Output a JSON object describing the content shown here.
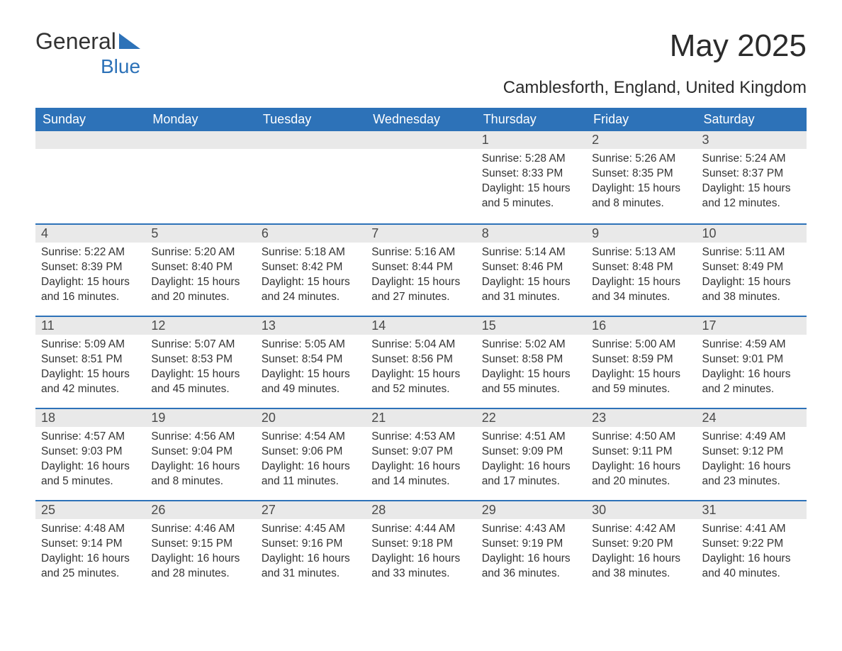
{
  "logo": {
    "part1": "General",
    "part2": "Blue"
  },
  "header": {
    "title": "May 2025",
    "location": "Camblesforth, England, United Kingdom"
  },
  "colors": {
    "primary": "#2d72b8",
    "header_bg": "#2d72b8",
    "header_text": "#ffffff",
    "daynum_bg": "#e9e9e9",
    "text": "#333333",
    "background": "#ffffff"
  },
  "calendar": {
    "day_names": [
      "Sunday",
      "Monday",
      "Tuesday",
      "Wednesday",
      "Thursday",
      "Friday",
      "Saturday"
    ],
    "weeks": [
      [
        null,
        null,
        null,
        null,
        {
          "n": "1",
          "sunrise": "Sunrise: 5:28 AM",
          "sunset": "Sunset: 8:33 PM",
          "daylight": "Daylight: 15 hours and 5 minutes."
        },
        {
          "n": "2",
          "sunrise": "Sunrise: 5:26 AM",
          "sunset": "Sunset: 8:35 PM",
          "daylight": "Daylight: 15 hours and 8 minutes."
        },
        {
          "n": "3",
          "sunrise": "Sunrise: 5:24 AM",
          "sunset": "Sunset: 8:37 PM",
          "daylight": "Daylight: 15 hours and 12 minutes."
        }
      ],
      [
        {
          "n": "4",
          "sunrise": "Sunrise: 5:22 AM",
          "sunset": "Sunset: 8:39 PM",
          "daylight": "Daylight: 15 hours and 16 minutes."
        },
        {
          "n": "5",
          "sunrise": "Sunrise: 5:20 AM",
          "sunset": "Sunset: 8:40 PM",
          "daylight": "Daylight: 15 hours and 20 minutes."
        },
        {
          "n": "6",
          "sunrise": "Sunrise: 5:18 AM",
          "sunset": "Sunset: 8:42 PM",
          "daylight": "Daylight: 15 hours and 24 minutes."
        },
        {
          "n": "7",
          "sunrise": "Sunrise: 5:16 AM",
          "sunset": "Sunset: 8:44 PM",
          "daylight": "Daylight: 15 hours and 27 minutes."
        },
        {
          "n": "8",
          "sunrise": "Sunrise: 5:14 AM",
          "sunset": "Sunset: 8:46 PM",
          "daylight": "Daylight: 15 hours and 31 minutes."
        },
        {
          "n": "9",
          "sunrise": "Sunrise: 5:13 AM",
          "sunset": "Sunset: 8:48 PM",
          "daylight": "Daylight: 15 hours and 34 minutes."
        },
        {
          "n": "10",
          "sunrise": "Sunrise: 5:11 AM",
          "sunset": "Sunset: 8:49 PM",
          "daylight": "Daylight: 15 hours and 38 minutes."
        }
      ],
      [
        {
          "n": "11",
          "sunrise": "Sunrise: 5:09 AM",
          "sunset": "Sunset: 8:51 PM",
          "daylight": "Daylight: 15 hours and 42 minutes."
        },
        {
          "n": "12",
          "sunrise": "Sunrise: 5:07 AM",
          "sunset": "Sunset: 8:53 PM",
          "daylight": "Daylight: 15 hours and 45 minutes."
        },
        {
          "n": "13",
          "sunrise": "Sunrise: 5:05 AM",
          "sunset": "Sunset: 8:54 PM",
          "daylight": "Daylight: 15 hours and 49 minutes."
        },
        {
          "n": "14",
          "sunrise": "Sunrise: 5:04 AM",
          "sunset": "Sunset: 8:56 PM",
          "daylight": "Daylight: 15 hours and 52 minutes."
        },
        {
          "n": "15",
          "sunrise": "Sunrise: 5:02 AM",
          "sunset": "Sunset: 8:58 PM",
          "daylight": "Daylight: 15 hours and 55 minutes."
        },
        {
          "n": "16",
          "sunrise": "Sunrise: 5:00 AM",
          "sunset": "Sunset: 8:59 PM",
          "daylight": "Daylight: 15 hours and 59 minutes."
        },
        {
          "n": "17",
          "sunrise": "Sunrise: 4:59 AM",
          "sunset": "Sunset: 9:01 PM",
          "daylight": "Daylight: 16 hours and 2 minutes."
        }
      ],
      [
        {
          "n": "18",
          "sunrise": "Sunrise: 4:57 AM",
          "sunset": "Sunset: 9:03 PM",
          "daylight": "Daylight: 16 hours and 5 minutes."
        },
        {
          "n": "19",
          "sunrise": "Sunrise: 4:56 AM",
          "sunset": "Sunset: 9:04 PM",
          "daylight": "Daylight: 16 hours and 8 minutes."
        },
        {
          "n": "20",
          "sunrise": "Sunrise: 4:54 AM",
          "sunset": "Sunset: 9:06 PM",
          "daylight": "Daylight: 16 hours and 11 minutes."
        },
        {
          "n": "21",
          "sunrise": "Sunrise: 4:53 AM",
          "sunset": "Sunset: 9:07 PM",
          "daylight": "Daylight: 16 hours and 14 minutes."
        },
        {
          "n": "22",
          "sunrise": "Sunrise: 4:51 AM",
          "sunset": "Sunset: 9:09 PM",
          "daylight": "Daylight: 16 hours and 17 minutes."
        },
        {
          "n": "23",
          "sunrise": "Sunrise: 4:50 AM",
          "sunset": "Sunset: 9:11 PM",
          "daylight": "Daylight: 16 hours and 20 minutes."
        },
        {
          "n": "24",
          "sunrise": "Sunrise: 4:49 AM",
          "sunset": "Sunset: 9:12 PM",
          "daylight": "Daylight: 16 hours and 23 minutes."
        }
      ],
      [
        {
          "n": "25",
          "sunrise": "Sunrise: 4:48 AM",
          "sunset": "Sunset: 9:14 PM",
          "daylight": "Daylight: 16 hours and 25 minutes."
        },
        {
          "n": "26",
          "sunrise": "Sunrise: 4:46 AM",
          "sunset": "Sunset: 9:15 PM",
          "daylight": "Daylight: 16 hours and 28 minutes."
        },
        {
          "n": "27",
          "sunrise": "Sunrise: 4:45 AM",
          "sunset": "Sunset: 9:16 PM",
          "daylight": "Daylight: 16 hours and 31 minutes."
        },
        {
          "n": "28",
          "sunrise": "Sunrise: 4:44 AM",
          "sunset": "Sunset: 9:18 PM",
          "daylight": "Daylight: 16 hours and 33 minutes."
        },
        {
          "n": "29",
          "sunrise": "Sunrise: 4:43 AM",
          "sunset": "Sunset: 9:19 PM",
          "daylight": "Daylight: 16 hours and 36 minutes."
        },
        {
          "n": "30",
          "sunrise": "Sunrise: 4:42 AM",
          "sunset": "Sunset: 9:20 PM",
          "daylight": "Daylight: 16 hours and 38 minutes."
        },
        {
          "n": "31",
          "sunrise": "Sunrise: 4:41 AM",
          "sunset": "Sunset: 9:22 PM",
          "daylight": "Daylight: 16 hours and 40 minutes."
        }
      ]
    ]
  }
}
